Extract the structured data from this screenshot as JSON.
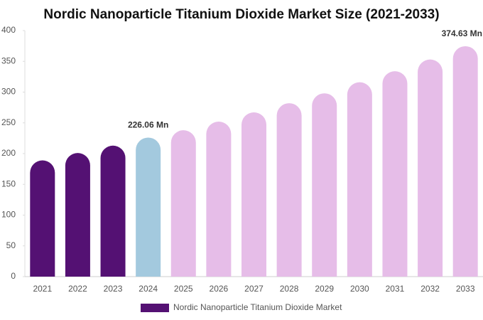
{
  "chart_data": {
    "type": "bar",
    "title": "Nordic Nanoparticle Titanium Dioxide Market Size (2021-2033)",
    "categories": [
      "2021",
      "2022",
      "2023",
      "2024",
      "2025",
      "2026",
      "2027",
      "2028",
      "2029",
      "2030",
      "2031",
      "2032",
      "2033"
    ],
    "series": [
      {
        "name": "Nordic Nanoparticle Titanium Dioxide Market",
        "color": "#541173",
        "values": [
          189,
          201,
          213,
          226.06,
          238,
          252,
          267,
          282,
          298,
          316,
          334,
          353,
          374.63
        ],
        "value_labels": [
          null,
          null,
          null,
          "226.06 Mn",
          null,
          null,
          null,
          null,
          null,
          null,
          null,
          null,
          "374.63 Mn"
        ],
        "colors": [
          "#541173",
          "#541173",
          "#541173",
          "#a3c9de",
          "#e6bde8",
          "#e6bde8",
          "#e6bde8",
          "#e6bde8",
          "#e6bde8",
          "#e6bde8",
          "#e6bde8",
          "#e6bde8",
          "#e6bde8"
        ]
      }
    ],
    "ylim": [
      0,
      400
    ],
    "yticks": [
      0,
      50,
      100,
      150,
      200,
      250,
      300,
      350,
      400
    ],
    "grid": false,
    "legend": "bottom"
  }
}
